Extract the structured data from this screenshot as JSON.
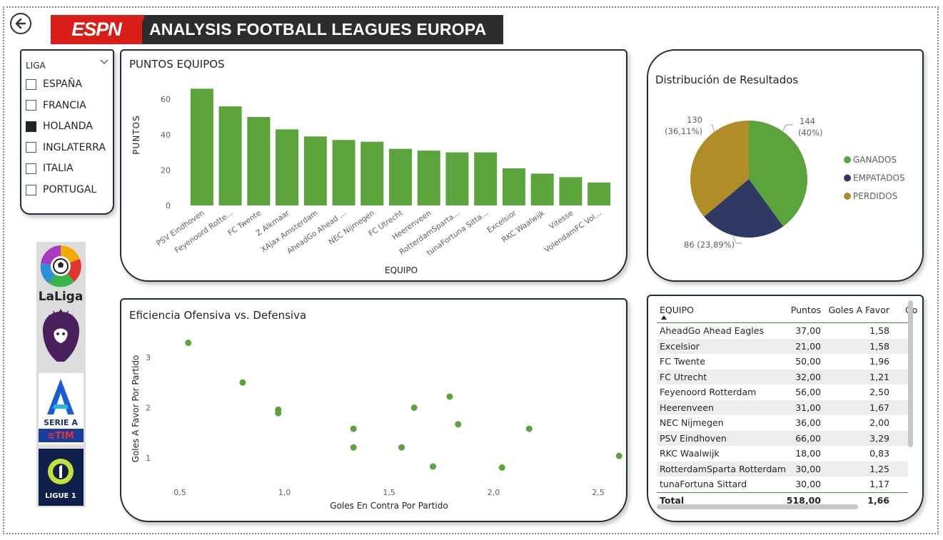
{
  "header": {
    "brand": "ESPN",
    "title": "ANALYSIS FOOTBALL LEAGUES EUROPA"
  },
  "colors": {
    "accent_green": "#5ba43c",
    "empatados": "#2e3a63",
    "perdidos": "#b08c26",
    "card_border": "#1f2e3d",
    "espn_red": "#d91e18"
  },
  "slicer": {
    "title": "LIGA",
    "options": [
      {
        "label": "ESPAÑA",
        "checked": false
      },
      {
        "label": "FRANCIA",
        "checked": false
      },
      {
        "label": "HOLANDA",
        "checked": true
      },
      {
        "label": "INGLATERRA",
        "checked": false
      },
      {
        "label": "ITALIA",
        "checked": false
      },
      {
        "label": "PORTUGAL",
        "checked": false
      }
    ]
  },
  "league_logos": [
    {
      "name": "LaLiga",
      "label": "LaLiga"
    },
    {
      "name": "Premier League",
      "label": ""
    },
    {
      "name": "Serie A TIM",
      "label": "SERIE A"
    },
    {
      "name": "Ligue 1",
      "label": "LIGUE 1"
    }
  ],
  "chart_data": [
    {
      "type": "bar",
      "title": "PUNTOS EQUIPOS",
      "xlabel": "EQUIPO",
      "ylabel": "PUNTOS",
      "ylim": [
        0,
        70
      ],
      "yticks": [
        0,
        20,
        40,
        60
      ],
      "categories": [
        "PSV Eindhoven",
        "Feyenoord Rotte...",
        "FC Twente",
        "Z Alkmaar",
        "XAjax Amsterdam",
        "AheadGo Ahead ...",
        "NEC Nijmegen",
        "FC Utrecht",
        "Heerenveen",
        "RotterdamSparta...",
        "tunaFortuna Sitta...",
        "Excelsior",
        "RKC Waalwijk",
        "Vitesse",
        "VolendamFC Vol..."
      ],
      "values": [
        66,
        56,
        50,
        43,
        39,
        37,
        36,
        32,
        31,
        30,
        30,
        21,
        18,
        16,
        13
      ]
    },
    {
      "type": "pie",
      "title": "Distribución de Resultados",
      "legend": [
        "GANADOS",
        "EMPATADOS",
        "PERDIDOS"
      ],
      "slices": [
        {
          "name": "GANADOS",
          "value": 144,
          "label": "144",
          "pct": "(40%)"
        },
        {
          "name": "EMPATADOS",
          "value": 86,
          "label": "86 (23,89%)",
          "pct": ""
        },
        {
          "name": "PERDIDOS",
          "value": 130,
          "label": "130",
          "pct": "(36,11%)"
        }
      ]
    },
    {
      "type": "scatter",
      "title": "Eficiencia Ofensiva vs. Defensiva",
      "xlabel": "Goles En Contra Por Partido",
      "ylabel": "Goles A Favor Por Partido",
      "xlim": [
        0.4,
        2.6
      ],
      "ylim": [
        0.6,
        3.6
      ],
      "xticks": [
        "0,5",
        "1,0",
        "1,5",
        "2,0",
        "2,5"
      ],
      "xtick_values": [
        0.5,
        1.0,
        1.5,
        2.0,
        2.5
      ],
      "yticks": [
        "1",
        "2",
        "3"
      ],
      "ytick_values": [
        1,
        2,
        3
      ],
      "points": [
        {
          "x": 0.54,
          "y": 3.29
        },
        {
          "x": 0.8,
          "y": 2.5
        },
        {
          "x": 0.97,
          "y": 1.96
        },
        {
          "x": 0.97,
          "y": 1.89
        },
        {
          "x": 1.33,
          "y": 1.58
        },
        {
          "x": 1.33,
          "y": 1.21
        },
        {
          "x": 1.56,
          "y": 1.21
        },
        {
          "x": 1.62,
          "y": 2.0
        },
        {
          "x": 1.71,
          "y": 0.83
        },
        {
          "x": 1.79,
          "y": 2.22
        },
        {
          "x": 1.83,
          "y": 1.67
        },
        {
          "x": 2.04,
          "y": 0.81
        },
        {
          "x": 2.17,
          "y": 1.58
        },
        {
          "x": 2.6,
          "y": 1.04
        }
      ]
    }
  ],
  "table": {
    "columns": [
      "EQUIPO",
      "Puntos",
      "Goles A Favor",
      "Go"
    ],
    "rows": [
      [
        "AheadGo Ahead Eagles",
        "37,00",
        "1,58"
      ],
      [
        "Excelsior",
        "21,00",
        "1,58"
      ],
      [
        "FC Twente",
        "50,00",
        "1,96"
      ],
      [
        "FC Utrecht",
        "32,00",
        "1,21"
      ],
      [
        "Feyenoord Rotterdam",
        "56,00",
        "2,50"
      ],
      [
        "Heerenveen",
        "31,00",
        "1,67"
      ],
      [
        "NEC Nijmegen",
        "36,00",
        "2,00"
      ],
      [
        "PSV Eindhoven",
        "66,00",
        "3,29"
      ],
      [
        "RKC Waalwijk",
        "18,00",
        "0,83"
      ],
      [
        "RotterdamSparta Rotterdam",
        "30,00",
        "1,25"
      ],
      [
        "tunaFortuna Sittard",
        "30,00",
        "1,17"
      ]
    ],
    "total": [
      "Total",
      "518,00",
      "1,66"
    ]
  }
}
